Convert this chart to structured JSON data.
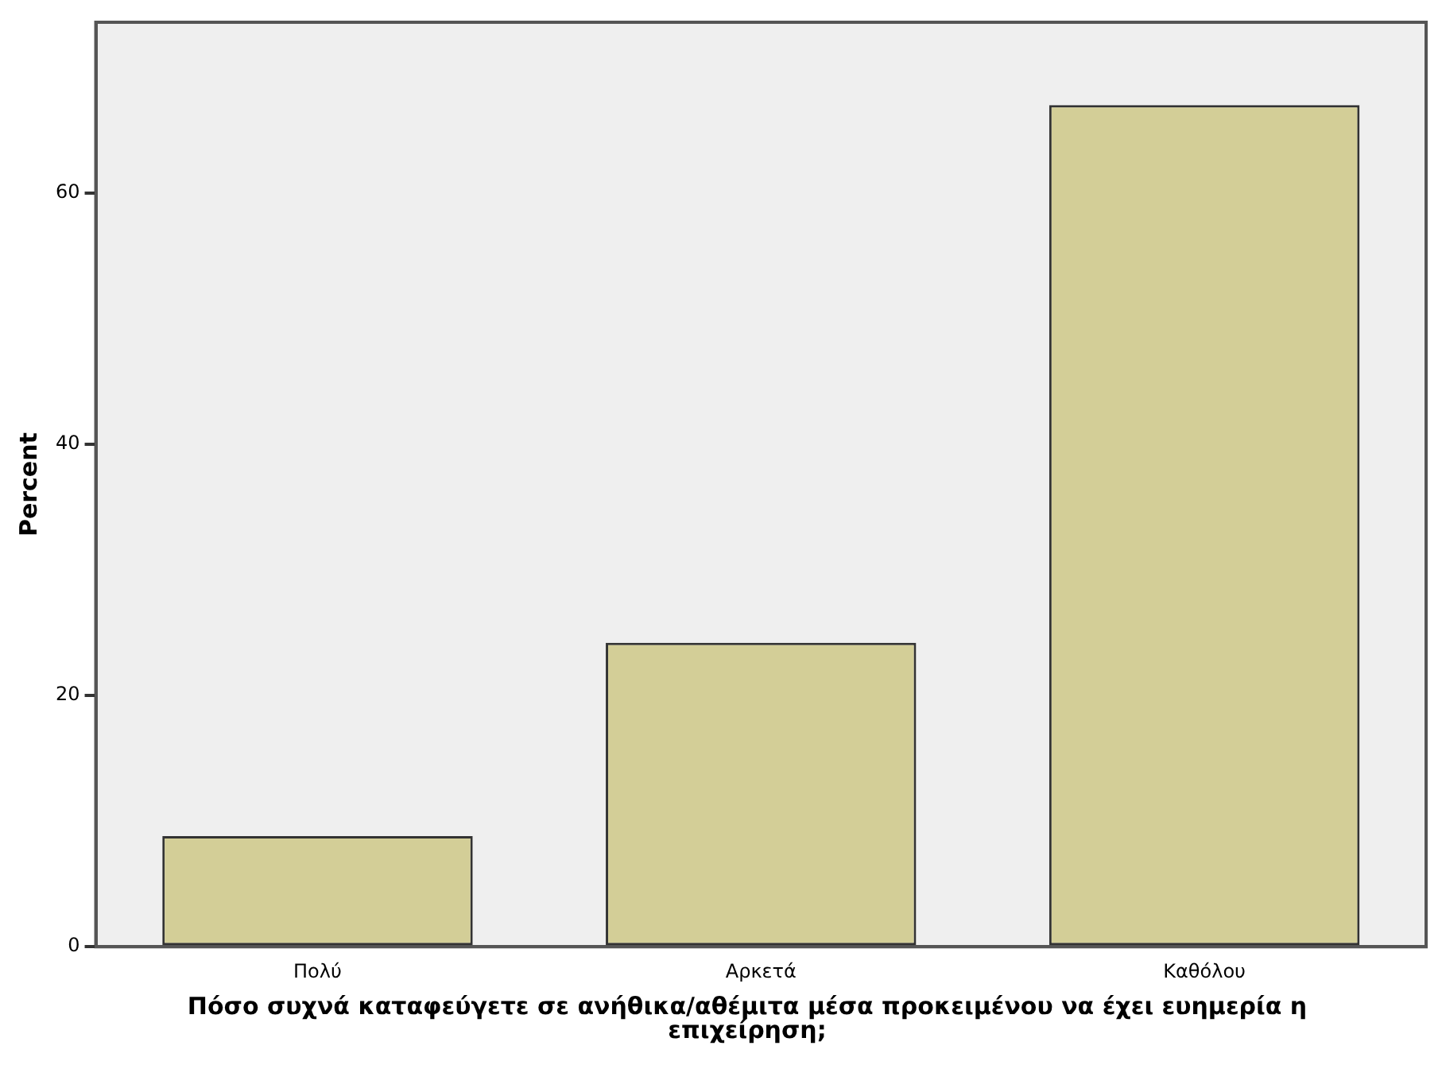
{
  "chart_data": {
    "type": "bar",
    "categories": [
      "Πολύ",
      "Αρκετά",
      "Καθόλου"
    ],
    "values": [
      8.8,
      24.2,
      67.0
    ],
    "color": "#d3ce97",
    "ylim": [
      0,
      73.6
    ],
    "yticks": [
      0,
      20,
      40,
      60
    ],
    "ylabel": "Percent",
    "xlabel": "Πόσο συχνά καταφεύγετε σε ανήθικα/αθέμιτα μέσα προκειμένου να έχει ευημερία η επιχείρηση;",
    "grid": false,
    "legend": false
  }
}
